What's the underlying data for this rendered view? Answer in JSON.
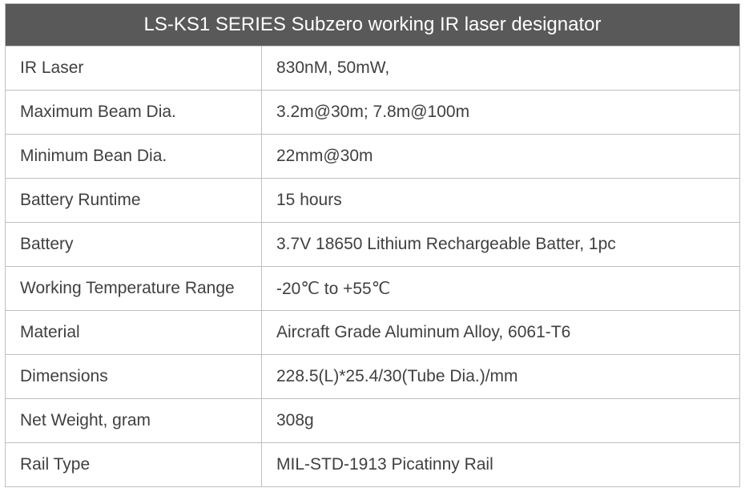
{
  "spec_table": {
    "type": "table",
    "title": "LS-KS1 SERIES Subzero working IR laser designator",
    "header_bg": "#595959",
    "header_color": "#ffffff",
    "border_color": "#bfbfbf",
    "text_color": "#404040",
    "title_fontsize": 24,
    "cell_fontsize": 21,
    "label_col_width": 320,
    "rows": [
      {
        "label": "IR Laser",
        "value": "830nM, 50mW,"
      },
      {
        "label": "Maximum Beam Dia.",
        "value": "3.2m@30m; 7.8m@100m"
      },
      {
        "label": "Minimum Bean Dia.",
        "value": "22mm@30m"
      },
      {
        "label": "Battery Runtime",
        "value": "15 hours"
      },
      {
        "label": "Battery",
        "value": "3.7V 18650 Lithium Rechargeable Batter, 1pc"
      },
      {
        "label": "Working Temperature Range",
        "value": "-20℃ to +55℃"
      },
      {
        "label": "Material",
        "value": "Aircraft Grade Aluminum Alloy, 6061-T6"
      },
      {
        "label": "Dimensions",
        "value": "228.5(L)*25.4/30(Tube Dia.)/mm"
      },
      {
        "label": "Net Weight, gram",
        "value": "308g"
      },
      {
        "label": "Rail Type",
        "value": "MIL-STD-1913 Picatinny Rail"
      }
    ]
  }
}
